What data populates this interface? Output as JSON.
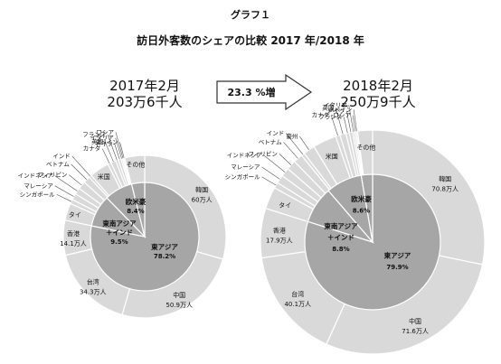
{
  "header": {
    "figure_label": "グラフ１",
    "title": "訪日外客数のシェアの比較  2017 年/2018 年"
  },
  "change": {
    "label": "23.3 %増"
  },
  "colors": {
    "outer_fill": "#d9d9d9",
    "inner_fill": "#a6a6a6",
    "stroke": "#ffffff",
    "leader": "#555555"
  },
  "chart_data": [
    {
      "type": "pie",
      "title_line1": "2017年2月",
      "title_line2": "203万6千人",
      "outer": [
        {
          "name": "韓国",
          "value": 60.0,
          "label": "60万人"
        },
        {
          "name": "中国",
          "value": 50.9,
          "label": "50.9万人"
        },
        {
          "name": "台湾",
          "value": 34.3,
          "label": "34.3万人"
        },
        {
          "name": "香港",
          "value": 14.1,
          "label": "14.1万人"
        },
        {
          "name": "タイ",
          "value": 7.0,
          "label": ""
        },
        {
          "name": "シンガポール",
          "value": 1.8,
          "label": ""
        },
        {
          "name": "マレーシア",
          "value": 2.6,
          "label": ""
        },
        {
          "name": "インドネシア",
          "value": 2.6,
          "label": ""
        },
        {
          "name": "フィリピン",
          "value": 3.2,
          "label": ""
        },
        {
          "name": "ベトナム",
          "value": 2.8,
          "label": ""
        },
        {
          "name": "インド",
          "value": 1.1,
          "label": ""
        },
        {
          "name": "米国",
          "value": 8.0,
          "label": ""
        },
        {
          "name": "カナダ",
          "value": 1.4,
          "label": ""
        },
        {
          "name": "英国",
          "value": 2.0,
          "label": ""
        },
        {
          "name": "フランス",
          "value": 1.1,
          "label": ""
        },
        {
          "name": "ドイツ",
          "value": 1.1,
          "label": ""
        },
        {
          "name": "イタリア",
          "value": 0.6,
          "label": ""
        },
        {
          "name": "ロシア",
          "value": 0.5,
          "label": ""
        },
        {
          "name": "スペイン",
          "value": 0.4,
          "label": ""
        },
        {
          "name": "その他",
          "value": 8.1,
          "label": ""
        }
      ],
      "inner": [
        {
          "name": "東アジア",
          "value": 78.2,
          "label": "78.2%"
        },
        {
          "name": "東南アジア＋インド",
          "value": 9.5,
          "label": "9.5%"
        },
        {
          "name": "欧米豪",
          "value": 8.4,
          "label": "8.4%"
        },
        {
          "name": "その他",
          "value": 3.9,
          "label": ""
        }
      ]
    },
    {
      "type": "pie",
      "title_line1": "2018年2月",
      "title_line2": "250万9千人",
      "outer": [
        {
          "name": "韓国",
          "value": 70.8,
          "label": "70.8万人"
        },
        {
          "name": "中国",
          "value": 71.6,
          "label": "71.6万人"
        },
        {
          "name": "台湾",
          "value": 40.1,
          "label": "40.1万人"
        },
        {
          "name": "香港",
          "value": 17.9,
          "label": "17.9万人"
        },
        {
          "name": "タイ",
          "value": 8.0,
          "label": ""
        },
        {
          "name": "シンガポール",
          "value": 2.1,
          "label": ""
        },
        {
          "name": "マレーシア",
          "value": 3.0,
          "label": ""
        },
        {
          "name": "インドネシア",
          "value": 3.2,
          "label": ""
        },
        {
          "name": "フィリピン",
          "value": 3.5,
          "label": ""
        },
        {
          "name": "ベトナム",
          "value": 3.3,
          "label": ""
        },
        {
          "name": "インド",
          "value": 1.2,
          "label": ""
        },
        {
          "name": "豪州",
          "value": 4.2,
          "label": ""
        },
        {
          "name": "米国",
          "value": 8.6,
          "label": ""
        },
        {
          "name": "カナダ",
          "value": 1.6,
          "label": ""
        },
        {
          "name": "英国",
          "value": 2.2,
          "label": ""
        },
        {
          "name": "フランス",
          "value": 1.2,
          "label": ""
        },
        {
          "name": "ドイツ",
          "value": 1.2,
          "label": ""
        },
        {
          "name": "イタリア",
          "value": 0.7,
          "label": ""
        },
        {
          "name": "ロシア",
          "value": 0.6,
          "label": ""
        },
        {
          "name": "スペイン",
          "value": 0.5,
          "label": ""
        },
        {
          "name": "その他",
          "value": 5.4,
          "label": ""
        }
      ],
      "inner": [
        {
          "name": "東アジア",
          "value": 79.9,
          "label": "79.9%"
        },
        {
          "name": "東南アジア＋インド",
          "value": 8.8,
          "label": "8.8%"
        },
        {
          "name": "欧米豪",
          "value": 8.6,
          "label": "8.6%"
        },
        {
          "name": "その他",
          "value": 2.7,
          "label": ""
        }
      ]
    }
  ]
}
